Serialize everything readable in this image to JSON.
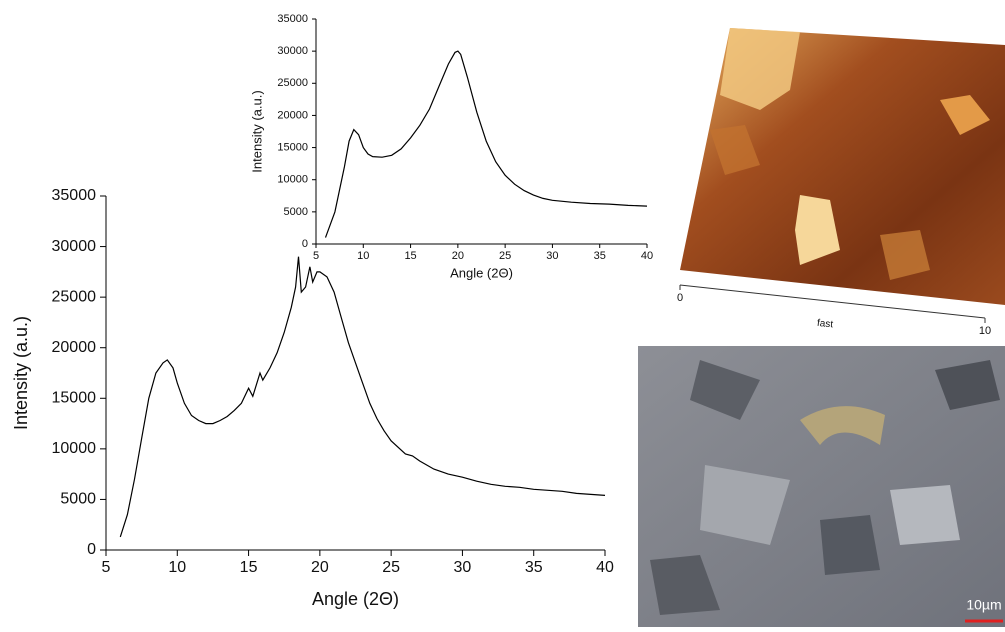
{
  "chart_data": [
    {
      "type": "line",
      "xlabel": "Angle (2Θ)",
      "ylabel": "Intensity (a.u.)",
      "color": "#000000",
      "xlim": [
        5,
        40
      ],
      "ylim": [
        0,
        35000
      ],
      "xticks": [
        5,
        10,
        15,
        20,
        25,
        30,
        35,
        40
      ],
      "yticks": [
        0,
        5000,
        10000,
        15000,
        20000,
        25000,
        30000,
        35000
      ],
      "x": [
        6,
        6.5,
        7,
        7.5,
        8,
        8.5,
        9,
        9.3,
        9.7,
        10,
        10.5,
        11,
        11.5,
        12,
        12.5,
        13,
        13.5,
        14,
        14.5,
        15,
        15.3,
        15.8,
        16,
        16.5,
        17,
        17.5,
        18,
        18.3,
        18.5,
        18.7,
        19,
        19.3,
        19.5,
        19.8,
        20,
        20.5,
        21,
        21.5,
        22,
        22.5,
        23,
        23.5,
        24,
        24.5,
        25,
        26,
        26.5,
        27,
        28,
        29,
        30,
        31,
        32,
        33,
        34,
        35,
        36,
        37,
        38,
        39,
        40
      ],
      "values": [
        1300,
        3500,
        7000,
        11000,
        15000,
        17500,
        18500,
        18800,
        18000,
        16500,
        14500,
        13300,
        12800,
        12500,
        12500,
        12800,
        13200,
        13800,
        14500,
        16000,
        15200,
        17500,
        16800,
        18000,
        19500,
        21500,
        24000,
        26000,
        29000,
        25500,
        26000,
        28000,
        26500,
        27500,
        27500,
        27000,
        25500,
        23000,
        20500,
        18500,
        16500,
        14500,
        13000,
        11800,
        10800,
        9500,
        9300,
        8800,
        8000,
        7500,
        7200,
        6800,
        6500,
        6300,
        6200,
        6000,
        5900,
        5800,
        5600,
        5500,
        5400
      ]
    },
    {
      "type": "line",
      "xlabel": "Angle (2Θ)",
      "ylabel": "Intensity (a.u.)",
      "color": "#000000",
      "xlim": [
        5,
        40
      ],
      "ylim": [
        0,
        35000
      ],
      "xticks": [
        5,
        10,
        15,
        20,
        25,
        30,
        35,
        40
      ],
      "yticks": [
        0,
        5000,
        10000,
        15000,
        20000,
        25000,
        30000,
        35000
      ],
      "x": [
        6,
        7,
        8,
        8.5,
        9,
        9.5,
        10,
        10.5,
        11,
        12,
        13,
        14,
        15,
        16,
        17,
        18,
        19,
        19.7,
        20,
        20.3,
        21,
        22,
        23,
        24,
        25,
        26,
        27,
        28,
        29,
        30,
        32,
        34,
        36,
        38,
        40
      ],
      "values": [
        1000,
        5000,
        12000,
        16000,
        17800,
        17000,
        15000,
        14000,
        13600,
        13500,
        13800,
        14800,
        16500,
        18500,
        21000,
        24500,
        28000,
        29800,
        30000,
        29500,
        26000,
        20500,
        16000,
        12800,
        10700,
        9300,
        8300,
        7600,
        7100,
        6800,
        6500,
        6300,
        6200,
        6000,
        5900
      ]
    }
  ],
  "afm_image": {
    "xlabel": "fast",
    "xticks": [
      0,
      10
    ]
  },
  "micrograph": {
    "scale_label": "10µm"
  }
}
